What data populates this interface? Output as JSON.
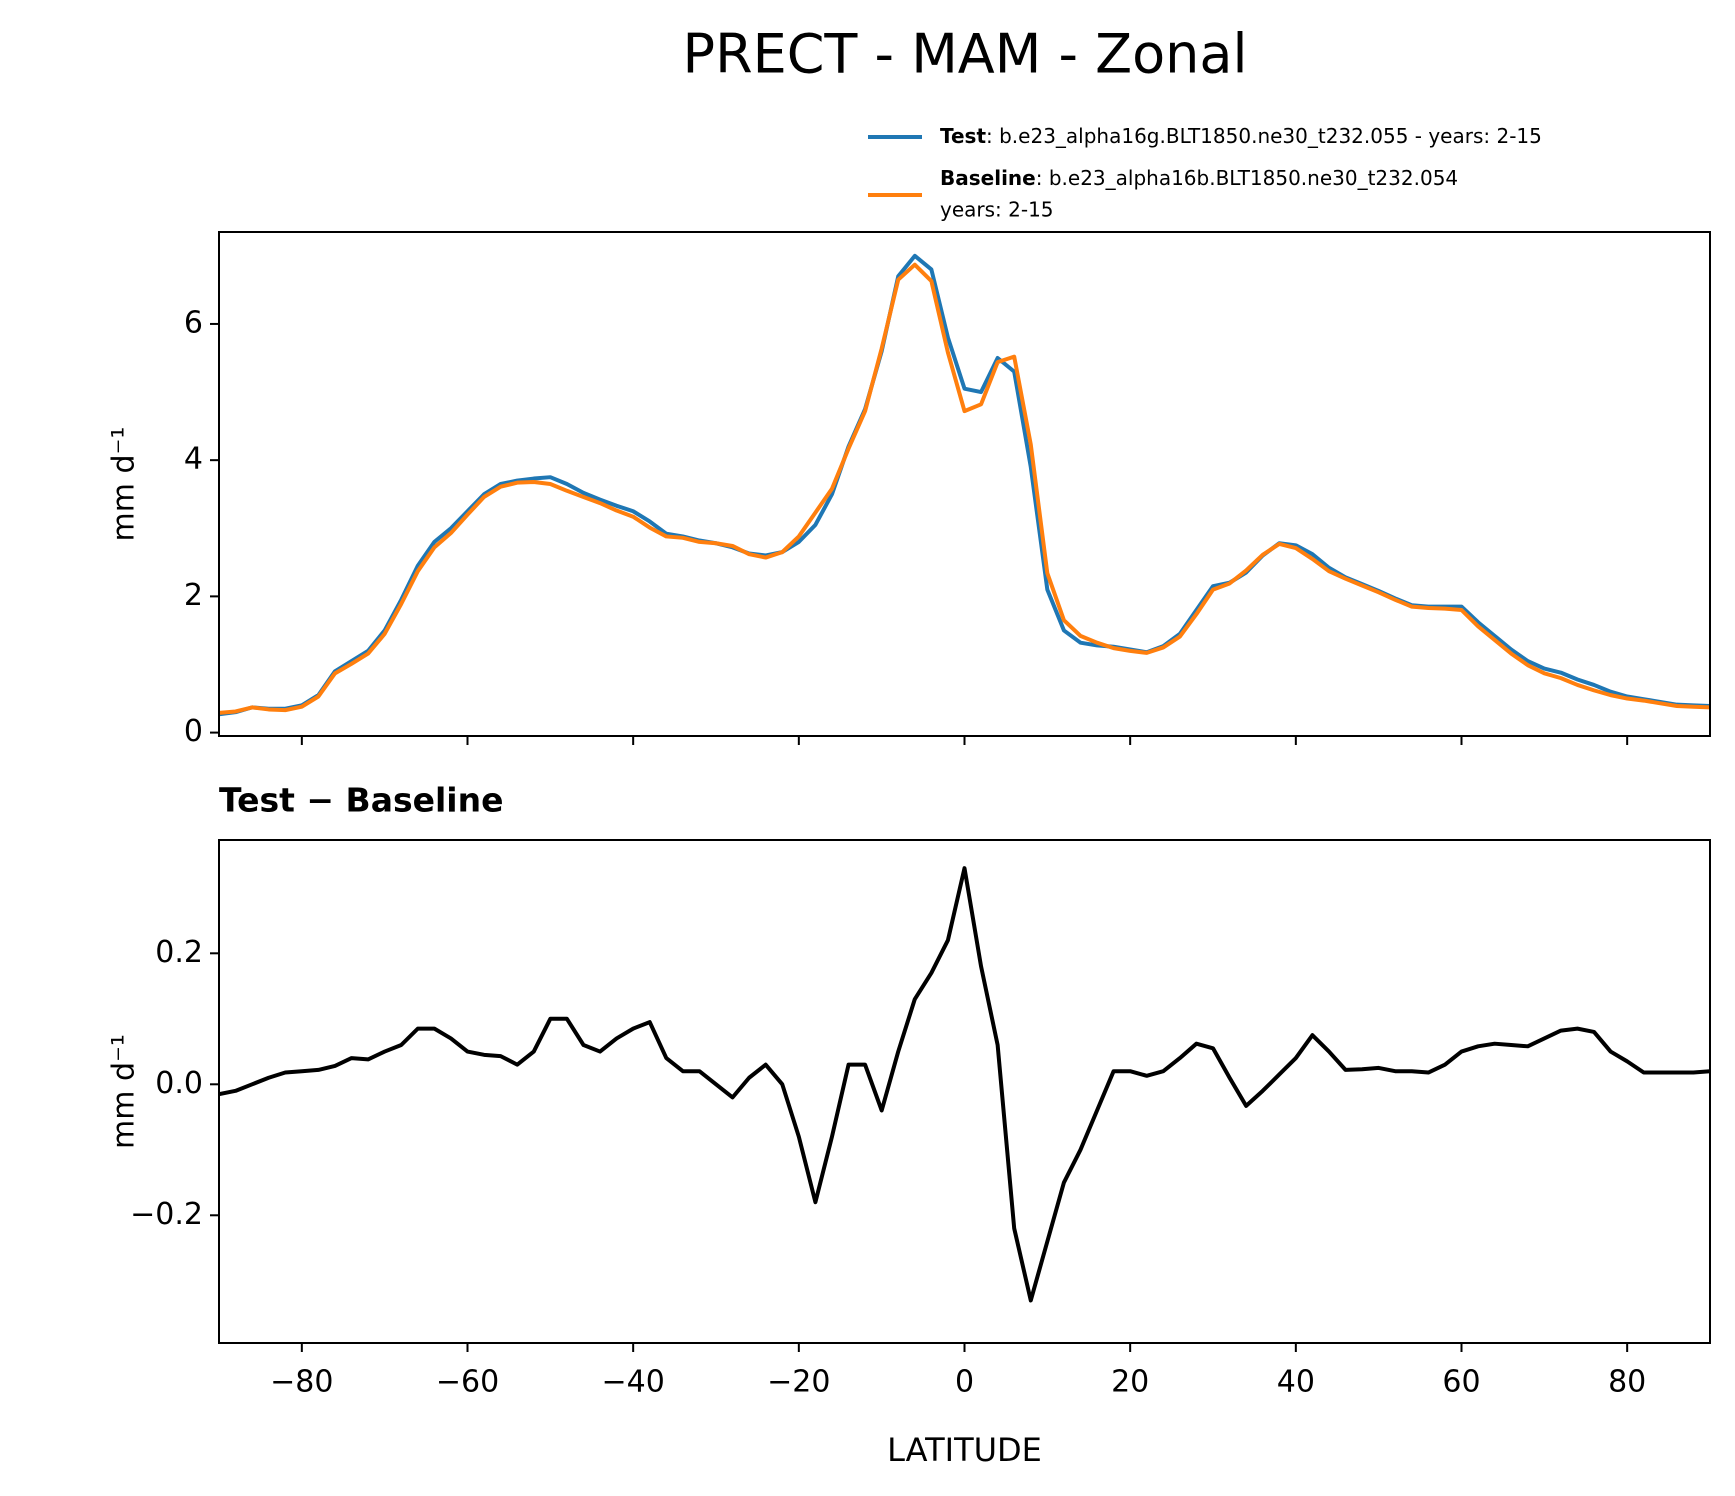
{
  "chart_data": [
    {
      "type": "line",
      "title": "PRECT - MAM - Zonal",
      "ylabel": "mm d⁻¹",
      "x": [
        -90,
        -88,
        -86,
        -84,
        -82,
        -80,
        -78,
        -76,
        -74,
        -72,
        -70,
        -68,
        -66,
        -64,
        -62,
        -60,
        -58,
        -56,
        -54,
        -52,
        -50,
        -48,
        -46,
        -44,
        -42,
        -40,
        -38,
        -36,
        -34,
        -32,
        -30,
        -28,
        -26,
        -24,
        -22,
        -20,
        -18,
        -16,
        -14,
        -12,
        -10,
        -8,
        -6,
        -4,
        -2,
        0,
        2,
        4,
        6,
        8,
        10,
        12,
        14,
        16,
        18,
        20,
        22,
        24,
        26,
        28,
        30,
        32,
        34,
        36,
        38,
        40,
        42,
        44,
        46,
        48,
        50,
        52,
        54,
        56,
        58,
        60,
        62,
        64,
        66,
        68,
        70,
        72,
        74,
        76,
        78,
        80,
        82,
        84,
        86,
        88,
        90
      ],
      "xlim": [
        -90,
        90
      ],
      "ylim": [
        -0.05,
        7.35
      ],
      "xticks": [
        -80,
        -60,
        -40,
        -20,
        0,
        20,
        40,
        60,
        80
      ],
      "yticks": [
        0,
        2,
        4,
        6
      ],
      "legend": "top-right",
      "series": [
        {
          "name": "Test",
          "description": ": b.e23_alpha16g.BLT1850.ne30_t232.055 - years: 2-15",
          "color": "#1f77b4",
          "values": [
            0.27,
            0.3,
            0.37,
            0.35,
            0.35,
            0.4,
            0.55,
            0.9,
            1.05,
            1.2,
            1.5,
            1.95,
            2.45,
            2.8,
            3.0,
            3.25,
            3.5,
            3.65,
            3.7,
            3.73,
            3.75,
            3.65,
            3.52,
            3.42,
            3.33,
            3.25,
            3.1,
            2.92,
            2.88,
            2.82,
            2.78,
            2.72,
            2.63,
            2.6,
            2.65,
            2.8,
            3.05,
            3.5,
            4.2,
            4.75,
            5.6,
            6.7,
            7.0,
            6.8,
            5.8,
            5.05,
            5.0,
            5.5,
            5.3,
            3.9,
            2.1,
            1.5,
            1.32,
            1.28,
            1.26,
            1.22,
            1.18,
            1.27,
            1.45,
            1.8,
            2.15,
            2.2,
            2.35,
            2.6,
            2.78,
            2.75,
            2.62,
            2.42,
            2.28,
            2.18,
            2.08,
            1.97,
            1.87,
            1.85,
            1.85,
            1.85,
            1.62,
            1.42,
            1.22,
            1.05,
            0.94,
            0.88,
            0.78,
            0.7,
            0.6,
            0.53,
            0.49,
            0.45,
            0.41,
            0.4,
            0.39
          ]
        },
        {
          "name": "Baseline",
          "description": [
            ": b.e23_alpha16b.BLT1850.ne30_t232.054",
            "years: 2-15"
          ],
          "color": "#ff7f0e",
          "values": [
            0.29,
            0.31,
            0.37,
            0.34,
            0.33,
            0.38,
            0.53,
            0.87,
            1.01,
            1.16,
            1.45,
            1.89,
            2.37,
            2.72,
            2.93,
            3.2,
            3.46,
            3.61,
            3.67,
            3.68,
            3.65,
            3.55,
            3.46,
            3.37,
            3.26,
            3.17,
            3.01,
            2.88,
            2.86,
            2.8,
            2.78,
            2.74,
            2.62,
            2.57,
            2.65,
            2.88,
            3.23,
            3.58,
            4.17,
            4.72,
            5.64,
            6.65,
            6.87,
            6.63,
            5.58,
            4.72,
            4.82,
            5.44,
            5.52,
            4.23,
            2.34,
            1.65,
            1.42,
            1.32,
            1.24,
            1.2,
            1.17,
            1.25,
            1.41,
            1.74,
            2.1,
            2.19,
            2.38,
            2.61,
            2.77,
            2.71,
            2.55,
            2.37,
            2.26,
            2.16,
            2.06,
            1.95,
            1.85,
            1.83,
            1.82,
            1.8,
            1.56,
            1.36,
            1.16,
            0.99,
            0.87,
            0.8,
            0.7,
            0.62,
            0.55,
            0.5,
            0.47,
            0.43,
            0.39,
            0.38,
            0.37
          ]
        }
      ]
    },
    {
      "type": "line",
      "title": "Test − Baseline",
      "ylabel": "mm d⁻¹",
      "xlabel": "LATITUDE",
      "x": [
        -90,
        -88,
        -86,
        -84,
        -82,
        -80,
        -78,
        -76,
        -74,
        -72,
        -70,
        -68,
        -66,
        -64,
        -62,
        -60,
        -58,
        -56,
        -54,
        -52,
        -50,
        -48,
        -46,
        -44,
        -42,
        -40,
        -38,
        -36,
        -34,
        -32,
        -30,
        -28,
        -26,
        -24,
        -22,
        -20,
        -18,
        -16,
        -14,
        -12,
        -10,
        -8,
        -6,
        -4,
        -2,
        0,
        2,
        4,
        6,
        8,
        10,
        12,
        14,
        16,
        18,
        20,
        22,
        24,
        26,
        28,
        30,
        32,
        34,
        36,
        38,
        40,
        42,
        44,
        46,
        48,
        50,
        52,
        54,
        56,
        58,
        60,
        62,
        64,
        66,
        68,
        70,
        72,
        74,
        76,
        78,
        80,
        82,
        84,
        86,
        88,
        90
      ],
      "xlim": [
        -90,
        90
      ],
      "ylim": [
        -0.395,
        0.373
      ],
      "xticks": [
        {
          "value": -80,
          "label": "−80"
        },
        {
          "value": -60,
          "label": "−60"
        },
        {
          "value": -40,
          "label": "−40"
        },
        {
          "value": -20,
          "label": "−20"
        },
        0,
        20,
        40,
        60,
        80
      ],
      "yticks": [
        {
          "value": -0.2,
          "label": "−0.2"
        },
        {
          "value": 0,
          "label": "0.0"
        },
        0.2
      ],
      "series": [
        {
          "color": "#000000",
          "values": [
            -0.015,
            -0.01,
            0.0,
            0.01,
            0.018,
            0.02,
            0.022,
            0.028,
            0.04,
            0.038,
            0.05,
            0.06,
            0.085,
            0.085,
            0.07,
            0.05,
            0.045,
            0.043,
            0.03,
            0.05,
            0.1,
            0.1,
            0.06,
            0.05,
            0.07,
            0.085,
            0.095,
            0.04,
            0.02,
            0.02,
            0.0,
            -0.02,
            0.01,
            0.03,
            0.0,
            -0.08,
            -0.18,
            -0.08,
            0.03,
            0.03,
            -0.04,
            0.05,
            0.13,
            0.17,
            0.22,
            0.33,
            0.18,
            0.06,
            -0.22,
            -0.33,
            -0.24,
            -0.15,
            -0.1,
            -0.04,
            0.02,
            0.02,
            0.013,
            0.02,
            0.04,
            0.062,
            0.055,
            0.01,
            -0.033,
            -0.01,
            0.015,
            0.04,
            0.075,
            0.05,
            0.022,
            0.023,
            0.025,
            0.02,
            0.02,
            0.018,
            0.03,
            0.05,
            0.058,
            0.062,
            0.06,
            0.058,
            0.07,
            0.082,
            0.085,
            0.08,
            0.05,
            0.035,
            0.018,
            0.018,
            0.018,
            0.018,
            0.02
          ]
        }
      ]
    }
  ]
}
